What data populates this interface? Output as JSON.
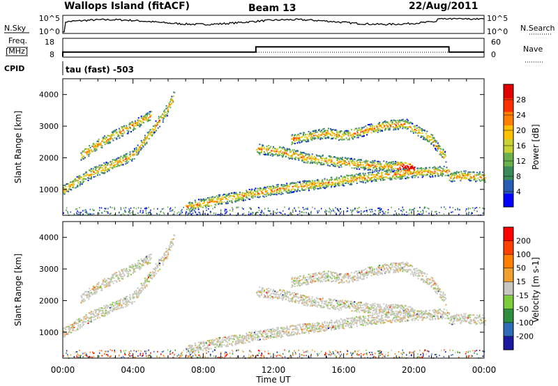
{
  "header": {
    "station": "Wallops Island (fitACF)",
    "beam": "Beam 13",
    "date": "22/Aug/2011"
  },
  "noise_panel": {
    "left_label": "N.Sky",
    "left_ticks": [
      "10^5",
      "10^0"
    ],
    "right_ticks": [
      "10^5",
      "10^0"
    ],
    "right_label": "N.Search"
  },
  "freq_panel": {
    "left_label_top": "Freq.",
    "left_label_bottom": "[MHz]",
    "left_ticks": [
      "18",
      "8"
    ],
    "right_ticks": [
      "60",
      "0"
    ],
    "right_label": "Nave"
  },
  "cpid_panel": {
    "label": "CPID",
    "text": "tau (fast) -503"
  },
  "power_panel": {
    "ylabel": "Slant Range [km]",
    "yticks": [
      "1000",
      "2000",
      "3000",
      "4000"
    ],
    "colorbar_label": "Power [dB]",
    "colorbar_ticks": [
      "28",
      "24",
      "20",
      "16",
      "12",
      "8",
      "4"
    ],
    "colors": [
      "#0000ff",
      "#2a5bb5",
      "#3c8c5a",
      "#6ab04c",
      "#c8d235",
      "#ffc000",
      "#ff8000",
      "#ff3000",
      "#e00000"
    ]
  },
  "velocity_panel": {
    "ylabel": "Slant Range [km]",
    "yticks": [
      "1000",
      "2000",
      "3000",
      "4000"
    ],
    "colorbar_label": "Velocity [m s-1]",
    "colorbar_ticks": [
      "200",
      "100",
      "50",
      "15",
      "-15",
      "-50",
      "-100",
      "-200"
    ],
    "colors": [
      "#1a1aa0",
      "#2e6db5",
      "#2f8f3f",
      "#7ccd3c",
      "#c8c8c0",
      "#f0a030",
      "#ff8000",
      "#ff4000",
      "#ff0000"
    ]
  },
  "x_axis": {
    "ticks": [
      "00:00",
      "04:00",
      "08:00",
      "12:00",
      "16:00",
      "20:00",
      "00:00"
    ],
    "label": "Time UT"
  },
  "chart_data": {
    "type": "heatmap",
    "title": "Wallops Island (fitACF) Beam 13 22/Aug/2011",
    "xlabel": "Time UT",
    "ylabel": "Slant Range [km]",
    "xlim": [
      0,
      24
    ],
    "ylim": [
      180,
      4500
    ],
    "power_range_db": [
      0,
      32
    ],
    "velocity_range_ms": [
      -250,
      250
    ],
    "frequency_mhz": [
      {
        "from": 0,
        "to": 11,
        "value": 10.5
      },
      {
        "from": 11,
        "to": 22,
        "value": 13.5
      },
      {
        "from": 22,
        "to": 24,
        "value": 10.5
      }
    ],
    "scatter_bands": [
      {
        "name": "main",
        "points": [
          [
            0,
            1000
          ],
          [
            1.5,
            1500
          ],
          [
            3,
            1850
          ],
          [
            4,
            2100
          ],
          [
            5,
            2800
          ],
          [
            6,
            3600
          ],
          [
            6.3,
            3950
          ]
        ]
      },
      {
        "name": "upper-left",
        "points": [
          [
            1,
            2050
          ],
          [
            2,
            2450
          ],
          [
            3,
            2750
          ],
          [
            4,
            3050
          ],
          [
            5,
            3350
          ]
        ]
      },
      {
        "name": "low-mid",
        "points": [
          [
            7,
            450
          ],
          [
            9,
            700
          ],
          [
            10.5,
            850
          ],
          [
            12,
            1000
          ],
          [
            14,
            1150
          ],
          [
            16,
            1300
          ],
          [
            18,
            1450
          ],
          [
            20,
            1550
          ],
          [
            22,
            1600
          ]
        ]
      },
      {
        "name": "post-12",
        "points": [
          [
            11,
            2300
          ],
          [
            12.5,
            2200
          ],
          [
            14,
            2000
          ],
          [
            15.5,
            1900
          ],
          [
            17,
            1800
          ],
          [
            18.5,
            1750
          ],
          [
            20,
            1700
          ]
        ]
      },
      {
        "name": "high-late",
        "points": [
          [
            13,
            2600
          ],
          [
            15,
            2800
          ],
          [
            16,
            2700
          ],
          [
            18,
            3000
          ],
          [
            19.5,
            3100
          ],
          [
            21,
            2600
          ],
          [
            21.8,
            2000
          ]
        ]
      },
      {
        "name": "late",
        "points": [
          [
            22,
            1400
          ],
          [
            23,
            1450
          ],
          [
            24,
            1400
          ]
        ]
      }
    ]
  }
}
